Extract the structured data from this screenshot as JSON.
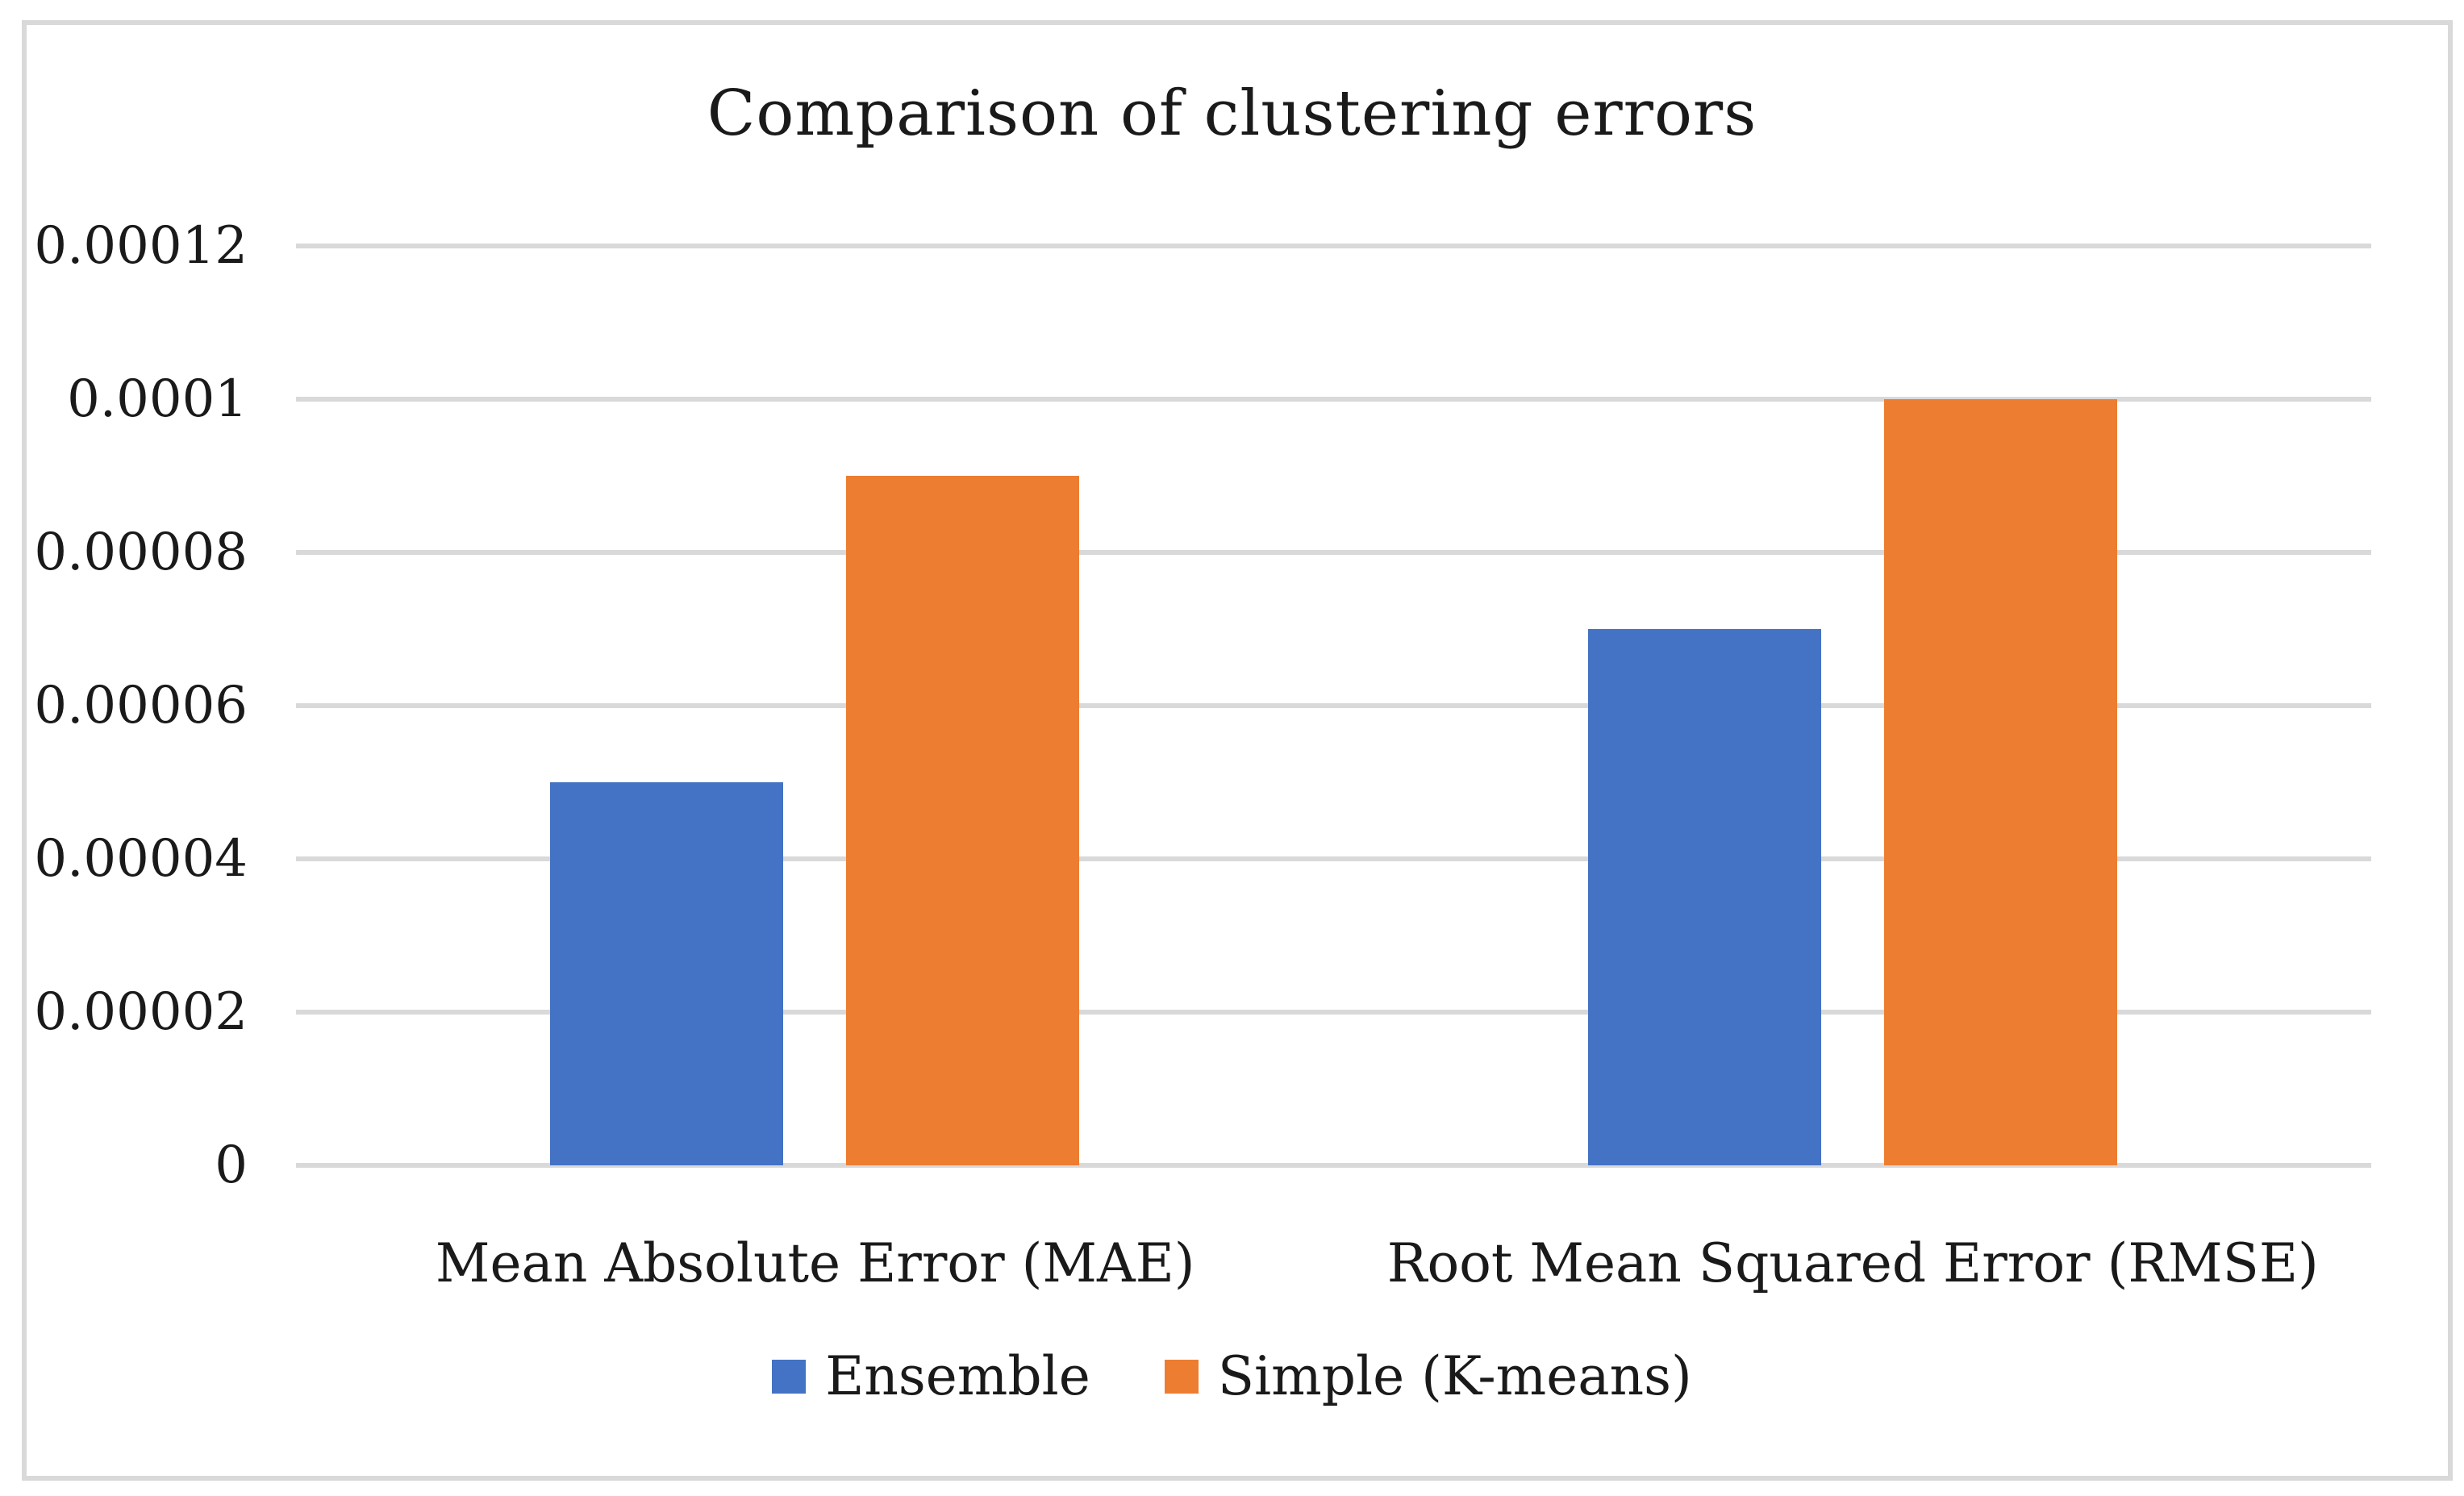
{
  "chart_data": {
    "type": "bar",
    "title": "Comparison of clustering errors",
    "categories": [
      "Mean Absolute Error (MAE)",
      "Root Mean Squared Error (RMSE)"
    ],
    "series": [
      {
        "name": "Ensemble",
        "color": "#4472C4",
        "values": [
          5e-05,
          7e-05
        ]
      },
      {
        "name": "Simple (K-means)",
        "color": "#ED7D31",
        "values": [
          9e-05,
          0.0001
        ]
      }
    ],
    "xlabel": "",
    "ylabel": "",
    "ylim": [
      0,
      0.00012
    ],
    "yticks": [
      {
        "value": 0,
        "label": "0"
      },
      {
        "value": 2e-05,
        "label": "0.00002"
      },
      {
        "value": 4e-05,
        "label": "0.00004"
      },
      {
        "value": 6e-05,
        "label": "0.00006"
      },
      {
        "value": 8e-05,
        "label": "0.00008"
      },
      {
        "value": 0.0001,
        "label": "0.0001"
      },
      {
        "value": 0.00012,
        "label": "0.00012"
      }
    ],
    "grid": true,
    "legend_position": "bottom",
    "colors": {
      "grid": "#d9d9d9",
      "frame_border": "#d9d9d9",
      "text": "#1a1a1a",
      "background": "#ffffff"
    }
  }
}
